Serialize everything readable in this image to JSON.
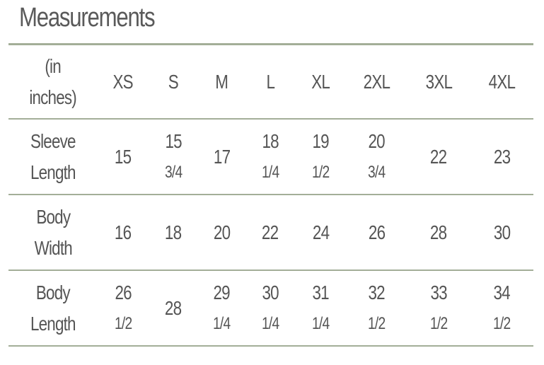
{
  "title": "Measurements",
  "table": {
    "corner": [
      "(in",
      "inches)"
    ],
    "sizes": [
      "XS",
      "S",
      "M",
      "L",
      "XL",
      "2XL",
      "3XL",
      "4XL"
    ],
    "rows": [
      {
        "label": [
          "Sleeve",
          "Length"
        ],
        "values": [
          [
            "15"
          ],
          [
            "15",
            "3/4"
          ],
          [
            "17"
          ],
          [
            "18",
            "1/4"
          ],
          [
            "19",
            "1/2"
          ],
          [
            "20",
            "3/4"
          ],
          [
            "22"
          ],
          [
            "23"
          ]
        ]
      },
      {
        "label": [
          "Body",
          "Width"
        ],
        "values": [
          [
            "16"
          ],
          [
            "18"
          ],
          [
            "20"
          ],
          [
            "22"
          ],
          [
            "24"
          ],
          [
            "26"
          ],
          [
            "28"
          ],
          [
            "30"
          ]
        ]
      },
      {
        "label": [
          "Body",
          "Length"
        ],
        "values": [
          [
            "26",
            "1/2"
          ],
          [
            "28"
          ],
          [
            "29",
            "1/4"
          ],
          [
            "30",
            "1/4"
          ],
          [
            "31",
            "1/4"
          ],
          [
            "32",
            "1/2"
          ],
          [
            "33",
            "1/2"
          ],
          [
            "34",
            "1/2"
          ]
        ]
      }
    ]
  },
  "colors": {
    "text": "#555555",
    "rule": "#a3ae98"
  }
}
